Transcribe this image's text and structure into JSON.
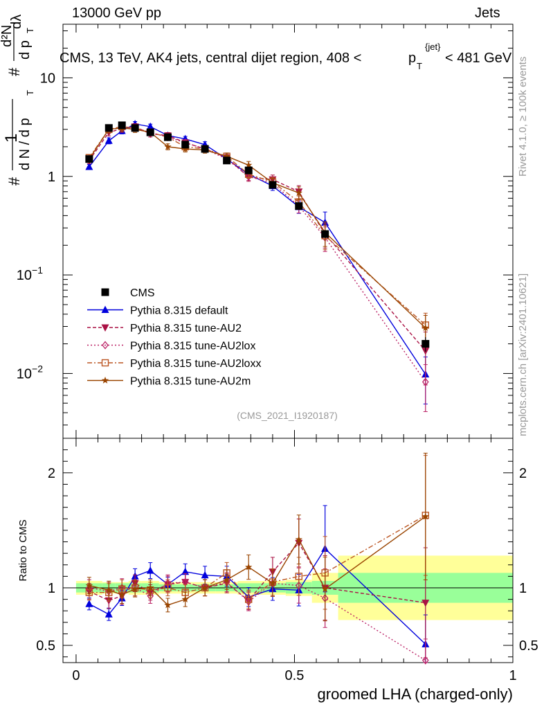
{
  "header": {
    "left": "13000 GeV pp",
    "right": "Jets"
  },
  "side_labels": {
    "rivet": "Rivet 4.1.0, ≥ 100k events",
    "mcplots": "mcplots.cern.ch [arXiv:2401.10621]"
  },
  "chart_data": {
    "type": "line",
    "title": "CMS, 13 TeV, AK4 jets, central dijet region, 408 < p_T^{jet} < 481 GeV",
    "title_main": "CMS, 13 TeV, AK4 jets, central dijet region, 408 <",
    "title_p": "p",
    "title_sup": "{jet}",
    "title_sub": "T",
    "title_tail": "< 481 GeV",
    "ylabel_text": "# ∙ 1/(dN/dp_T) ∙ d²N/(dp_T dλ)",
    "ylabel_parts": {
      "hash": "#",
      "one": "1",
      "dN": "d N / d p",
      "T": "T",
      "d2N": "d²N",
      "dp": "d p",
      "dl": "dλ"
    },
    "xlabel": "groomed LHA (charged-only)",
    "ratio_ylabel": "Ratio to CMS",
    "watermark": "(CMS_2021_I1920187)",
    "xlim": [
      -0.03,
      1.0
    ],
    "ylim_main": [
      0.0022,
      35
    ],
    "ylim_ratio": [
      0.35,
      2.3
    ],
    "yscale_main": "log",
    "main_yticks": [
      {
        "v": 0.01,
        "m": "10",
        "e": "−2"
      },
      {
        "v": 0.1,
        "m": "10",
        "e": "−1"
      },
      {
        "v": 1,
        "m": "1",
        "e": ""
      },
      {
        "v": 10,
        "m": "10",
        "e": ""
      }
    ],
    "ratio_yticks": [
      0.5,
      1,
      2
    ],
    "ratio_ytick_labels": [
      "0.5",
      "1",
      "2"
    ],
    "xticks": [
      0,
      0.5,
      1
    ],
    "xtick_labels": [
      "0",
      "0.5",
      "1"
    ],
    "x": [
      0.03,
      0.075,
      0.105,
      0.135,
      0.17,
      0.21,
      0.25,
      0.295,
      0.345,
      0.395,
      0.45,
      0.51,
      0.57,
      0.8
    ],
    "bins": [
      0.0,
      0.06,
      0.09,
      0.12,
      0.15,
      0.19,
      0.23,
      0.27,
      0.32,
      0.37,
      0.42,
      0.48,
      0.54,
      0.6,
      1.0
    ],
    "cms": {
      "name": "CMS",
      "values": [
        1.5,
        3.1,
        3.3,
        3.1,
        2.8,
        2.5,
        2.1,
        1.9,
        1.45,
        1.15,
        0.82,
        0.5,
        0.26,
        0.02
      ],
      "band_inner": [
        0.04,
        0.04,
        0.04,
        0.04,
        0.04,
        0.03,
        0.03,
        0.03,
        0.03,
        0.04,
        0.04,
        0.05,
        0.06,
        0.13
      ],
      "band_outer": [
        0.06,
        0.05,
        0.05,
        0.06,
        0.06,
        0.05,
        0.05,
        0.05,
        0.05,
        0.06,
        0.06,
        0.07,
        0.13,
        0.28
      ]
    },
    "series": [
      {
        "name": "Pythia 8.315 default",
        "color": "#0000dd",
        "marker": "triangle-up",
        "dash": "",
        "values": [
          1.25,
          2.3,
          2.9,
          3.4,
          3.2,
          2.6,
          2.4,
          2.1,
          1.5,
          1.05,
          0.8,
          0.49,
          0.34,
          0.0098
        ],
        "ratio": [
          0.86,
          0.77,
          0.91,
          1.1,
          1.15,
          1.03,
          1.14,
          1.11,
          1.1,
          0.92,
          0.99,
          0.98,
          1.34,
          0.51
        ],
        "err": [
          0.06,
          0.07,
          0.07,
          0.06,
          0.06,
          0.06,
          0.06,
          0.07,
          0.08,
          0.09,
          0.1,
          0.14,
          0.28,
          0.5
        ]
      },
      {
        "name": "Pythia 8.315 tune-AU2",
        "color": "#aa1144",
        "marker": "triangle-down",
        "dash": "5,3",
        "values": [
          1.45,
          2.8,
          3.05,
          3.2,
          2.7,
          2.6,
          2.2,
          1.9,
          1.55,
          0.98,
          0.93,
          0.7,
          0.26,
          0.017
        ],
        "ratio": [
          0.97,
          0.89,
          0.93,
          1.04,
          0.96,
          1.03,
          1.05,
          1.0,
          1.04,
          0.89,
          1.14,
          1.39,
          1.0,
          0.87
        ],
        "err": [
          0.07,
          0.08,
          0.08,
          0.07,
          0.07,
          0.07,
          0.07,
          0.07,
          0.08,
          0.09,
          0.11,
          0.15,
          0.28,
          0.55
        ]
      },
      {
        "name": "Pythia 8.315 tune-AU2lox",
        "color": "#bb2266",
        "marker": "diamond-open",
        "dash": "2,3",
        "values": [
          1.5,
          3.0,
          3.1,
          3.1,
          2.8,
          2.5,
          2.2,
          1.9,
          1.5,
          1.0,
          0.85,
          0.5,
          0.24,
          0.0082
        ],
        "ratio": [
          1.0,
          0.97,
          1.0,
          1.0,
          0.93,
          1.04,
          1.05,
          1.0,
          1.05,
          0.88,
          1.04,
          1.02,
          0.91,
          0.37
        ],
        "err": [
          0.07,
          0.08,
          0.08,
          0.07,
          0.07,
          0.07,
          0.07,
          0.07,
          0.08,
          0.09,
          0.11,
          0.15,
          0.28,
          0.5
        ]
      },
      {
        "name": "Pythia 8.315 tune-AU2loxx",
        "color": "#bb5522",
        "marker": "square-open",
        "dash": "7,3,2,3",
        "values": [
          1.55,
          3.0,
          3.2,
          3.1,
          2.8,
          2.5,
          2.0,
          1.9,
          1.6,
          1.05,
          0.88,
          0.55,
          0.25,
          0.031
        ],
        "ratio": [
          0.96,
          0.96,
          0.99,
          1.0,
          0.98,
          1.0,
          0.96,
          1.0,
          1.13,
          0.9,
          1.05,
          1.1,
          1.13,
          1.63
        ],
        "err": [
          0.07,
          0.08,
          0.08,
          0.07,
          0.07,
          0.07,
          0.07,
          0.07,
          0.08,
          0.09,
          0.11,
          0.15,
          0.28,
          0.32
        ]
      },
      {
        "name": "Pythia 8.315 tune-AU2m",
        "color": "#994400",
        "marker": "star",
        "dash": "",
        "values": [
          1.5,
          3.0,
          3.1,
          3.0,
          2.8,
          2.0,
          1.9,
          1.85,
          1.6,
          1.3,
          0.86,
          0.68,
          0.27,
          0.029
        ],
        "ratio": [
          1.02,
          0.98,
          0.94,
          0.99,
          1.0,
          0.85,
          0.9,
          1.0,
          1.07,
          1.18,
          1.04,
          1.42,
          0.99,
          1.62
        ],
        "err": [
          0.07,
          0.08,
          0.08,
          0.07,
          0.07,
          0.07,
          0.07,
          0.07,
          0.08,
          0.09,
          0.11,
          0.15,
          0.28,
          0.34
        ]
      }
    ]
  }
}
